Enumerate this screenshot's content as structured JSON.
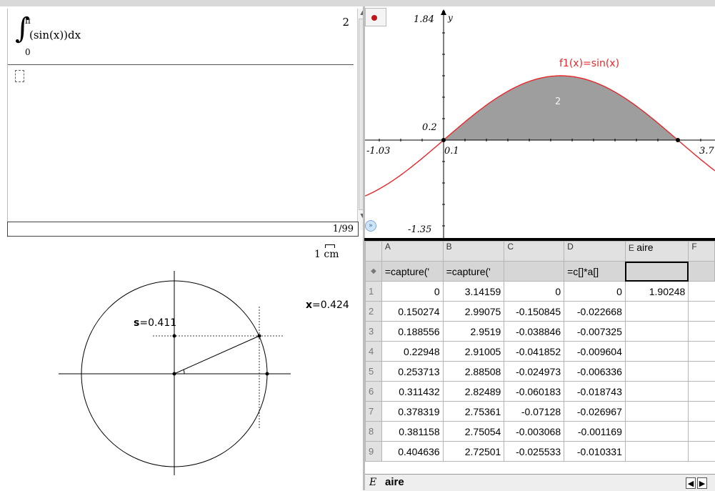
{
  "calculator": {
    "integral_upper": "π",
    "integral_lower": "0",
    "integral_expr": "(sin(x))dx",
    "result": "2",
    "history_status": "1/99"
  },
  "graph": {
    "y_axis_label": "y",
    "y_max": "1.84",
    "y_min": "-1.35",
    "y_tick": "0.2",
    "x_min": "-1.03",
    "x_max": "3.7",
    "x_tick": "0.1",
    "function_label": "f1(x)=sin(x)",
    "area_value": "2",
    "colors": {
      "curve": "#e8262a",
      "area": "#9e9e9e"
    }
  },
  "geometry": {
    "scale_label": "1 cm",
    "x_name": "x",
    "x_value": "=0.424",
    "s_name": "s",
    "s_value": "=0.411"
  },
  "spreadsheet": {
    "columns": [
      {
        "letter": "A",
        "name": ""
      },
      {
        "letter": "B",
        "name": ""
      },
      {
        "letter": "C",
        "name": ""
      },
      {
        "letter": "D",
        "name": ""
      },
      {
        "letter": "E",
        "name": "aire"
      },
      {
        "letter": "F",
        "name": ""
      }
    ],
    "formula_marker": "◆",
    "formulas": [
      "=capture('",
      "=capture('",
      "",
      "=c[]*a[]",
      "",
      ""
    ],
    "rows": [
      {
        "n": "1",
        "cells": [
          "0",
          "3.14159",
          "0",
          "0",
          "1.90248",
          ""
        ]
      },
      {
        "n": "2",
        "cells": [
          "0.150274",
          "2.99075",
          "-0.150845",
          "-0.022668",
          "",
          ""
        ]
      },
      {
        "n": "3",
        "cells": [
          "0.188556",
          "2.9519",
          "-0.038846",
          "-0.007325",
          "",
          ""
        ]
      },
      {
        "n": "4",
        "cells": [
          "0.22948",
          "2.91005",
          "-0.041852",
          "-0.009604",
          "",
          ""
        ]
      },
      {
        "n": "5",
        "cells": [
          "0.253713",
          "2.88508",
          "-0.024973",
          "-0.006336",
          "",
          ""
        ]
      },
      {
        "n": "6",
        "cells": [
          "0.311432",
          "2.82489",
          "-0.060183",
          "-0.018743",
          "",
          ""
        ]
      },
      {
        "n": "7",
        "cells": [
          "0.378319",
          "2.75361",
          "-0.07128",
          "-0.026967",
          "",
          ""
        ]
      },
      {
        "n": "8",
        "cells": [
          "0.381158",
          "2.75054",
          "-0.003068",
          "-0.001169",
          "",
          ""
        ]
      },
      {
        "n": "9",
        "cells": [
          "0.404636",
          "2.72501",
          "-0.025533",
          "-0.010331",
          "",
          ""
        ]
      }
    ],
    "footer_col": "E",
    "footer_name": "aire"
  }
}
